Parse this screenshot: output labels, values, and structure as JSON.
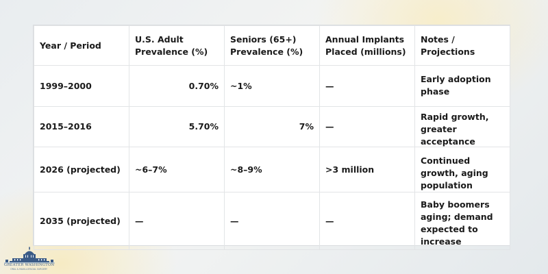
{
  "table": {
    "headers": [
      "Year / Period",
      "U.S. Adult Prevalence (%)",
      "Seniors (65+) Prevalence (%)",
      "Annual Implants Placed (millions)",
      "Notes / Projections"
    ],
    "rows": [
      [
        "1999–2000",
        "0.70%",
        "~1%",
        "—",
        "Early adoption phase"
      ],
      [
        "2015–2016",
        "5.70%",
        "7%",
        "—",
        "Rapid growth, greater acceptance"
      ],
      [
        "2026 (projected)",
        "~6–7%",
        "~8–9%",
        ">3 million",
        "Continued growth, aging population"
      ],
      [
        "2035 (projected)",
        "—",
        "—",
        "—",
        "Baby boomers aging; demand expected to increase"
      ]
    ]
  },
  "logo": {
    "name": "GREATER WASHINGTON",
    "subtitle": "ORAL & MAXILLOFACIAL SURGERY",
    "colors": {
      "primary": "#3b5b86",
      "accent": "#7da7d9"
    }
  }
}
